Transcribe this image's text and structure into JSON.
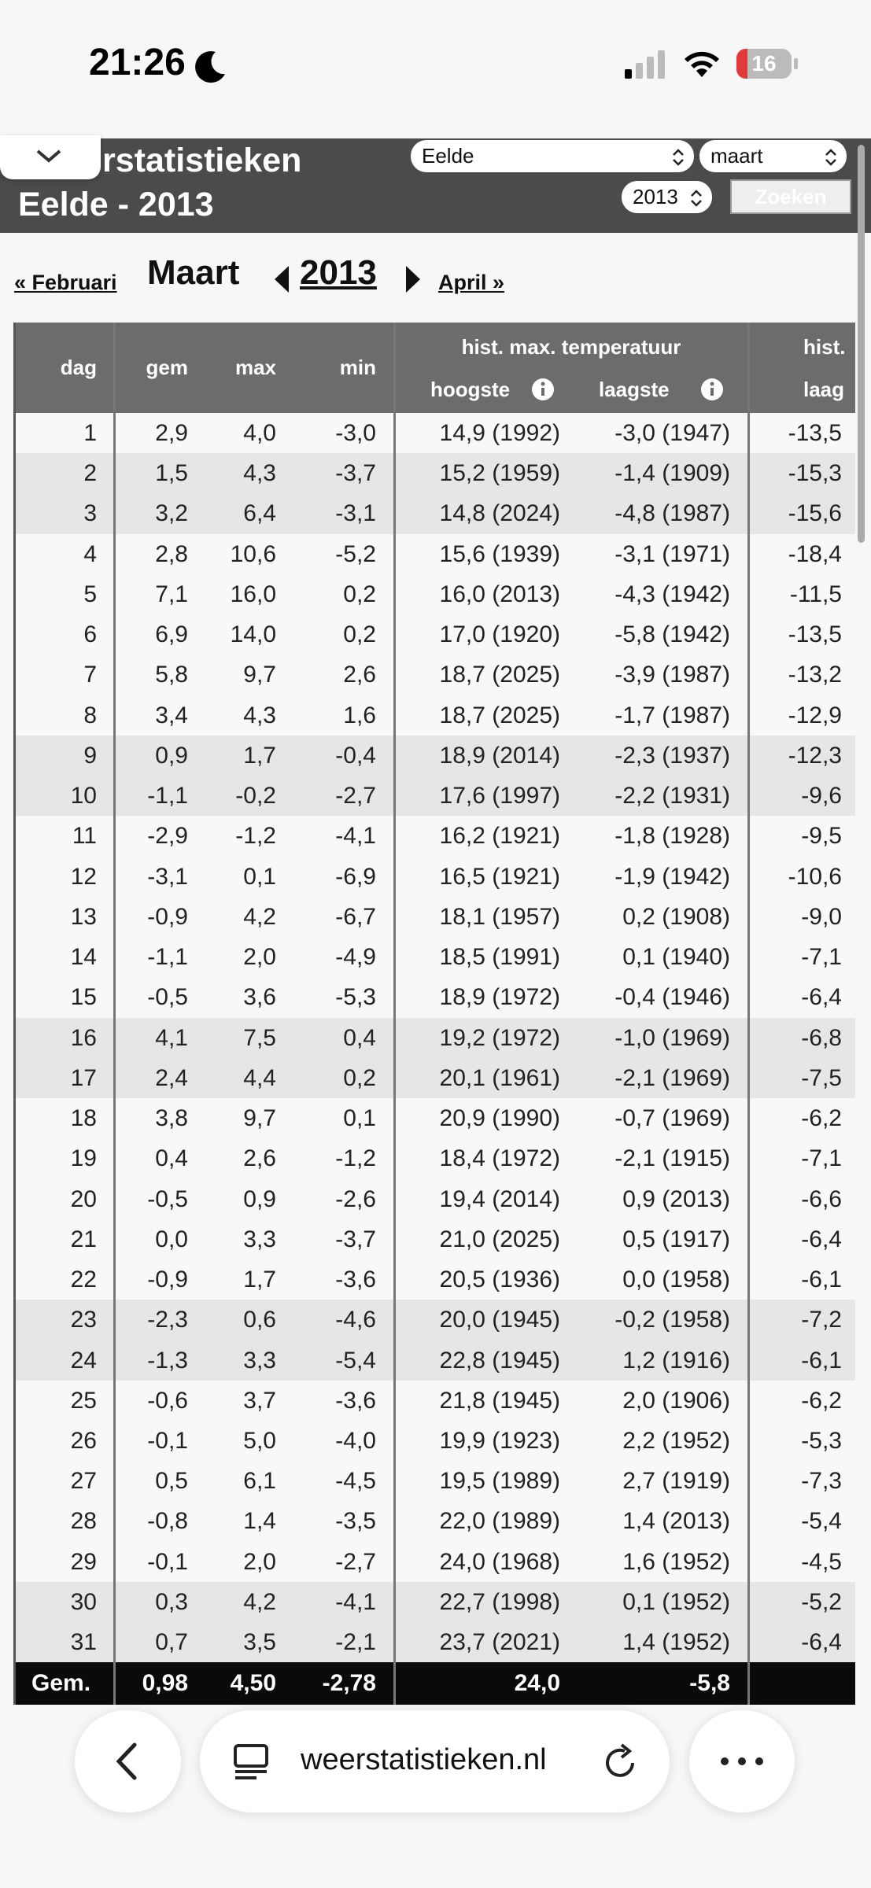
{
  "status_bar": {
    "time": "21:26",
    "battery": "16"
  },
  "header": {
    "title": "rstatistieken",
    "subtitle": "Eelde - 2013",
    "station": "Eelde",
    "month": "maart",
    "year": "2013",
    "button": "Zoeken"
  },
  "nav": {
    "prev": "« Februari",
    "month": "Maart",
    "year": "2013",
    "next": "April »"
  },
  "table": {
    "columns": [
      "dag",
      "gem",
      "max",
      "min"
    ],
    "group": "hist. max. temperatuur",
    "subcolumns": [
      "hoogste",
      "laagste"
    ],
    "group2": "hist.",
    "subcolumn2": "laag",
    "rows": [
      [
        "1",
        "2,9",
        "4,0",
        "-3,0",
        "14,9 (1992)",
        "-3,0 (1947)",
        "-13,5"
      ],
      [
        "2",
        "1,5",
        "4,3",
        "-3,7",
        "15,2 (1959)",
        "-1,4 (1909)",
        "-15,3"
      ],
      [
        "3",
        "3,2",
        "6,4",
        "-3,1",
        "14,8 (2024)",
        "-4,8 (1987)",
        "-15,6"
      ],
      [
        "4",
        "2,8",
        "10,6",
        "-5,2",
        "15,6 (1939)",
        "-3,1 (1971)",
        "-18,4"
      ],
      [
        "5",
        "7,1",
        "16,0",
        "0,2",
        "16,0 (2013)",
        "-4,3 (1942)",
        "-11,5"
      ],
      [
        "6",
        "6,9",
        "14,0",
        "0,2",
        "17,0 (1920)",
        "-5,8 (1942)",
        "-13,5"
      ],
      [
        "7",
        "5,8",
        "9,7",
        "2,6",
        "18,7 (2025)",
        "-3,9 (1987)",
        "-13,2"
      ],
      [
        "8",
        "3,4",
        "4,3",
        "1,6",
        "18,7 (2025)",
        "-1,7 (1987)",
        "-12,9"
      ],
      [
        "9",
        "0,9",
        "1,7",
        "-0,4",
        "18,9 (2014)",
        "-2,3 (1937)",
        "-12,3"
      ],
      [
        "10",
        "-1,1",
        "-0,2",
        "-2,7",
        "17,6 (1997)",
        "-2,2 (1931)",
        "-9,6"
      ],
      [
        "11",
        "-2,9",
        "-1,2",
        "-4,1",
        "16,2 (1921)",
        "-1,8 (1928)",
        "-9,5"
      ],
      [
        "12",
        "-3,1",
        "0,1",
        "-6,9",
        "16,5 (1921)",
        "-1,9 (1942)",
        "-10,6"
      ],
      [
        "13",
        "-0,9",
        "4,2",
        "-6,7",
        "18,1 (1957)",
        "0,2 (1908)",
        "-9,0"
      ],
      [
        "14",
        "-1,1",
        "2,0",
        "-4,9",
        "18,5 (1991)",
        "0,1 (1940)",
        "-7,1"
      ],
      [
        "15",
        "-0,5",
        "3,6",
        "-5,3",
        "18,9 (1972)",
        "-0,4 (1946)",
        "-6,4"
      ],
      [
        "16",
        "4,1",
        "7,5",
        "0,4",
        "19,2 (1972)",
        "-1,0 (1969)",
        "-6,8"
      ],
      [
        "17",
        "2,4",
        "4,4",
        "0,2",
        "20,1 (1961)",
        "-2,1 (1969)",
        "-7,5"
      ],
      [
        "18",
        "3,8",
        "9,7",
        "0,1",
        "20,9 (1990)",
        "-0,7 (1969)",
        "-6,2"
      ],
      [
        "19",
        "0,4",
        "2,6",
        "-1,2",
        "18,4 (1972)",
        "-2,1 (1915)",
        "-7,1"
      ],
      [
        "20",
        "-0,5",
        "0,9",
        "-2,6",
        "19,4 (2014)",
        "0,9 (2013)",
        "-6,6"
      ],
      [
        "21",
        "0,0",
        "3,3",
        "-3,7",
        "21,0 (2025)",
        "0,5 (1917)",
        "-6,4"
      ],
      [
        "22",
        "-0,9",
        "1,7",
        "-3,6",
        "20,5 (1936)",
        "0,0 (1958)",
        "-6,1"
      ],
      [
        "23",
        "-2,3",
        "0,6",
        "-4,6",
        "20,0 (1945)",
        "-0,2 (1958)",
        "-7,2"
      ],
      [
        "24",
        "-1,3",
        "3,3",
        "-5,4",
        "22,8 (1945)",
        "1,2 (1916)",
        "-6,1"
      ],
      [
        "25",
        "-0,6",
        "3,7",
        "-3,6",
        "21,8 (1945)",
        "2,0 (1906)",
        "-6,2"
      ],
      [
        "26",
        "-0,1",
        "5,0",
        "-4,0",
        "19,9 (1923)",
        "2,2 (1952)",
        "-5,3"
      ],
      [
        "27",
        "0,5",
        "6,1",
        "-4,5",
        "19,5 (1989)",
        "2,7 (1919)",
        "-7,3"
      ],
      [
        "28",
        "-0,8",
        "1,4",
        "-3,5",
        "22,0 (1989)",
        "1,4 (2013)",
        "-5,4"
      ],
      [
        "29",
        "-0,1",
        "2,0",
        "-2,7",
        "24,0 (1968)",
        "1,6 (1952)",
        "-4,5"
      ],
      [
        "30",
        "0,3",
        "4,2",
        "-4,1",
        "22,7 (1998)",
        "0,1 (1952)",
        "-5,2"
      ],
      [
        "31",
        "0,7",
        "3,5",
        "-2,1",
        "23,7 (2021)",
        "1,4 (1952)",
        "-6,4"
      ]
    ],
    "footer": [
      "Gem.",
      "0,98",
      "4,50",
      "-2,78",
      "",
      "",
      "",
      "24,0",
      "-5,8"
    ]
  },
  "browser": {
    "url": "weerstatistieken.nl"
  }
}
